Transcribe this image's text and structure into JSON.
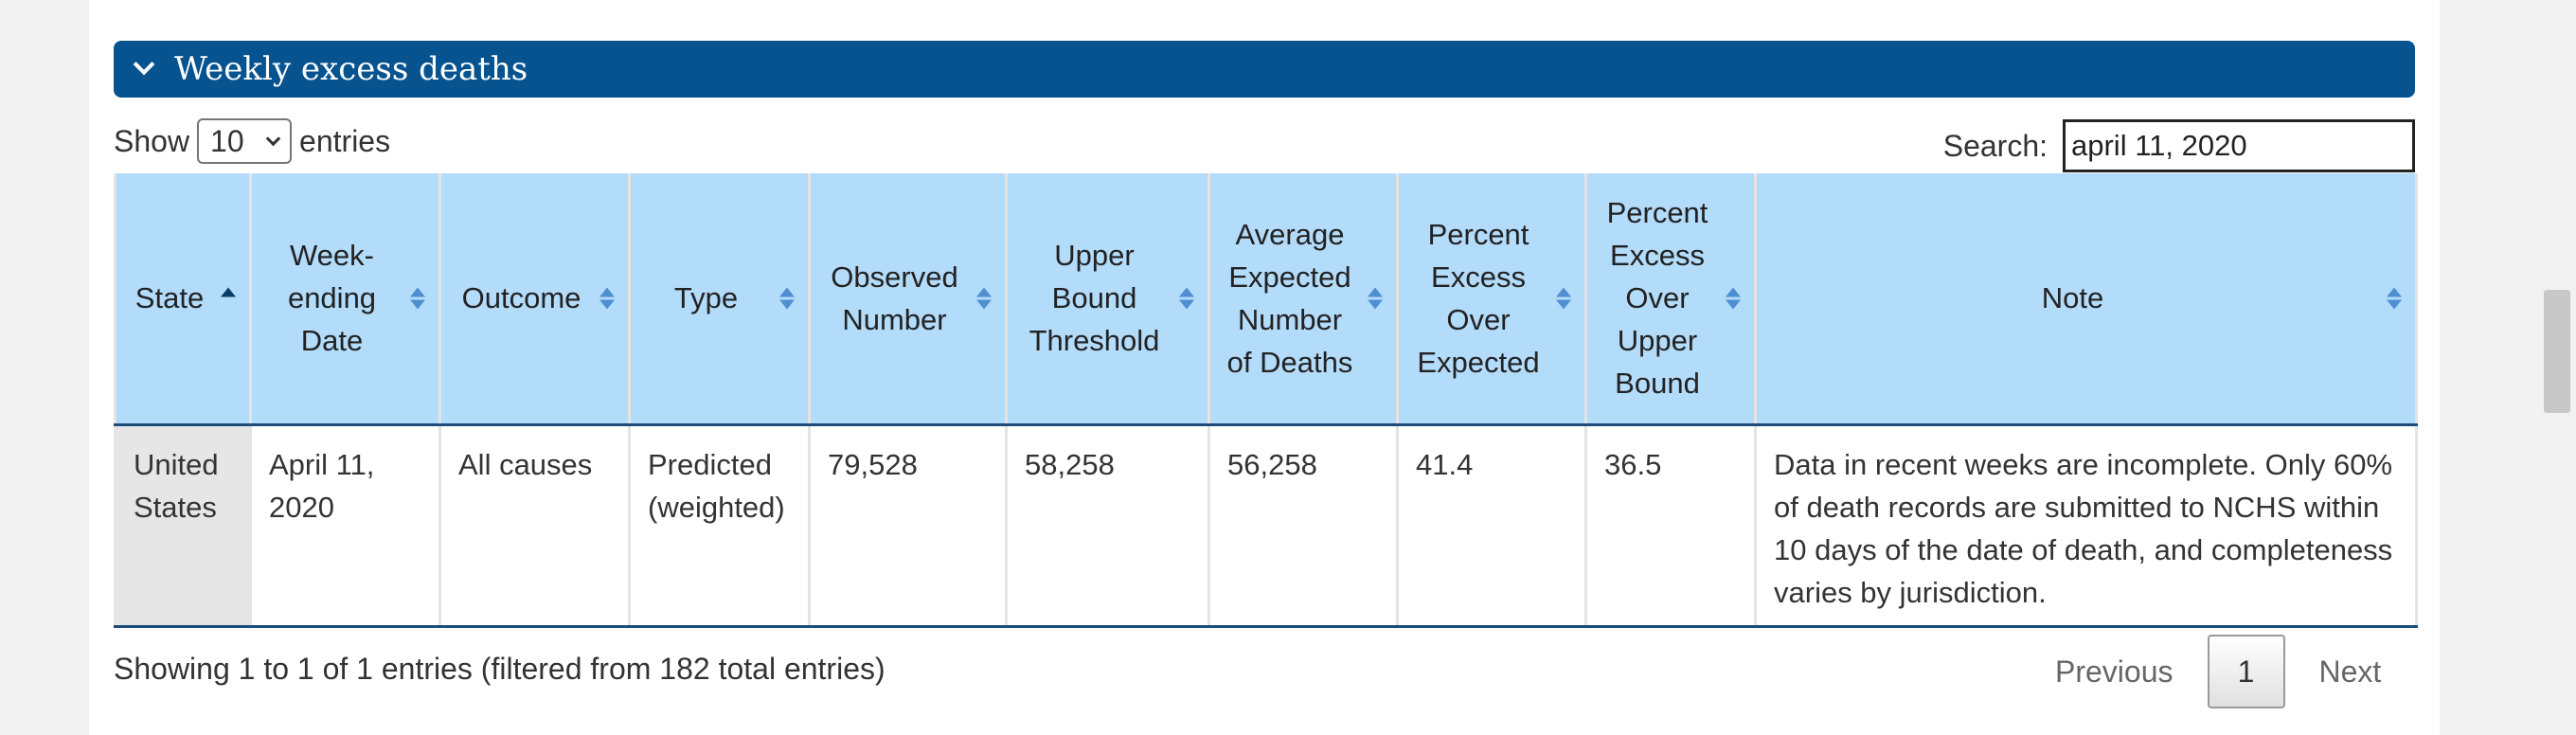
{
  "accordion": {
    "title": "Weekly excess deaths"
  },
  "length": {
    "show_label": "Show",
    "selected": "10",
    "entries_label": "entries"
  },
  "search": {
    "label": "Search:",
    "value": "april 11, 2020"
  },
  "table": {
    "headers": [
      "State",
      "Week-ending Date",
      "Outcome",
      "Type",
      "Observed Number",
      "Upper Bound Threshold",
      "Average Expected Number of Deaths",
      "Percent Excess Over Expected",
      "Percent Excess Over Upper Bound",
      "Note"
    ],
    "rows": [
      [
        "United States",
        "April 11, 2020",
        "All causes",
        "Predicted (weighted)",
        "79,528",
        "58,258",
        "56,258",
        "41.4",
        "36.5",
        "Data in recent weeks are incomplete. Only 60% of death records are submitted to NCHS within 10 days of the date of death, and completeness varies by jurisdiction."
      ]
    ]
  },
  "footer": {
    "info": "Showing 1 to 1 of 1 entries (filtered from 182 total entries)",
    "previous": "Previous",
    "page": "1",
    "next": "Next"
  },
  "colors": {
    "accent": "#06538f",
    "header_bg": "#b3dbfa"
  }
}
